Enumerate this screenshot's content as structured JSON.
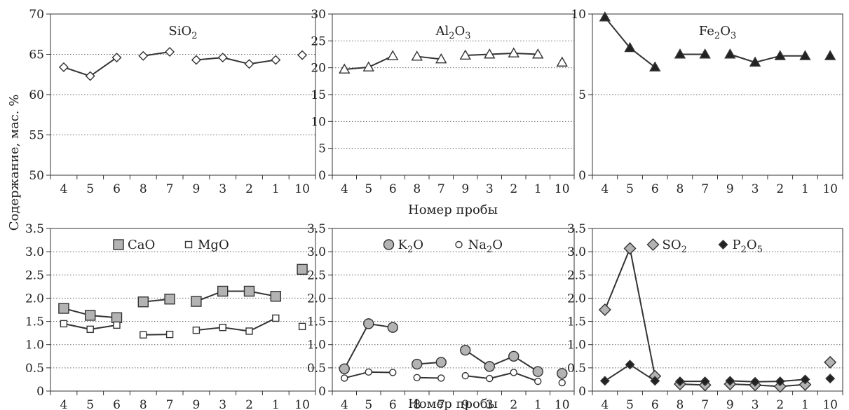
{
  "figure": {
    "ylabel": "Содержание, мас. %",
    "xlabel_top": "Номер пробы",
    "xlabel_bottom": "Номер пробы"
  },
  "chart_data": [
    {
      "type": "line",
      "categories": [
        "4",
        "5",
        "6",
        "8",
        "7",
        "9",
        "3",
        "2",
        "1",
        "10"
      ],
      "segments": [
        [
          0,
          2
        ],
        [
          3,
          4
        ],
        [
          5,
          8
        ],
        [
          9,
          9
        ]
      ],
      "title": {
        "base": "SiO",
        "sub": "2",
        "tail": ""
      },
      "ylim": [
        50,
        70
      ],
      "yticks": [
        50,
        55,
        60,
        65,
        70
      ],
      "ytick_labels": [
        "50",
        "55",
        "60",
        "65",
        "70"
      ],
      "grid": true,
      "series": [
        {
          "marker": "diamond",
          "fill": "#ffffff",
          "values": [
            63.4,
            62.3,
            64.6,
            64.8,
            65.3,
            64.3,
            64.6,
            63.8,
            64.3,
            64.9
          ]
        }
      ]
    },
    {
      "type": "line",
      "categories": [
        "4",
        "5",
        "6",
        "8",
        "7",
        "9",
        "3",
        "2",
        "1",
        "10"
      ],
      "segments": [
        [
          0,
          2
        ],
        [
          3,
          4
        ],
        [
          5,
          8
        ],
        [
          9,
          9
        ]
      ],
      "title": {
        "base": "Al",
        "sub": "2",
        "tail": "O",
        "sub2": "3"
      },
      "ylim": [
        0,
        30
      ],
      "yticks": [
        0,
        5,
        10,
        15,
        20,
        25,
        30
      ],
      "ytick_labels": [
        "0",
        "5",
        "10",
        "15",
        "20",
        "25",
        "30"
      ],
      "grid": true,
      "series": [
        {
          "marker": "triangle",
          "fill": "#ffffff",
          "values": [
            19.7,
            20.1,
            22.2,
            22.1,
            21.6,
            22.3,
            22.5,
            22.7,
            22.5,
            21.0
          ]
        }
      ]
    },
    {
      "type": "line",
      "categories": [
        "4",
        "5",
        "6",
        "8",
        "7",
        "9",
        "3",
        "2",
        "1",
        "10"
      ],
      "segments": [
        [
          0,
          2
        ],
        [
          3,
          4
        ],
        [
          5,
          8
        ],
        [
          9,
          9
        ]
      ],
      "title": {
        "base": "Fe",
        "sub": "2",
        "tail": "O",
        "sub2": "3"
      },
      "ylim": [
        0,
        10
      ],
      "yticks": [
        0,
        5,
        10
      ],
      "ytick_labels": [
        "0",
        "5",
        "10"
      ],
      "grid": true,
      "series": [
        {
          "marker": "triangle",
          "fill": "#222222",
          "values": [
            9.8,
            7.9,
            6.7,
            7.5,
            7.5,
            7.5,
            7.0,
            7.4,
            7.4,
            7.4
          ]
        }
      ]
    },
    {
      "type": "line",
      "categories": [
        "4",
        "5",
        "6",
        "8",
        "7",
        "9",
        "3",
        "2",
        "1",
        "10"
      ],
      "segments": [
        [
          0,
          2
        ],
        [
          3,
          4
        ],
        [
          5,
          8
        ],
        [
          9,
          9
        ]
      ],
      "ylim": [
        0,
        3.5
      ],
      "yticks": [
        0,
        0.5,
        1.0,
        1.5,
        2.0,
        2.5,
        3.0,
        3.5
      ],
      "ytick_labels": [
        "0",
        "0.5",
        "1.0",
        "1.5",
        "2.0",
        "2.5",
        "3.0",
        "3.5"
      ],
      "grid": true,
      "legend_position": "top-center",
      "series": [
        {
          "name": {
            "base": "CaO"
          },
          "marker": "square-large",
          "fill": "#b3b3b3",
          "values": [
            1.78,
            1.63,
            1.58,
            1.92,
            1.98,
            1.93,
            2.15,
            2.15,
            2.04,
            2.62
          ]
        },
        {
          "name": {
            "base": "MgO"
          },
          "marker": "square-small",
          "fill": "#ffffff",
          "values": [
            1.45,
            1.33,
            1.42,
            1.21,
            1.22,
            1.31,
            1.37,
            1.29,
            1.57,
            1.39
          ]
        }
      ]
    },
    {
      "type": "line",
      "categories": [
        "4",
        "5",
        "6",
        "8",
        "7",
        "9",
        "3",
        "2",
        "1",
        "10"
      ],
      "segments": [
        [
          0,
          2
        ],
        [
          3,
          4
        ],
        [
          5,
          8
        ],
        [
          9,
          9
        ]
      ],
      "ylim": [
        0,
        3.5
      ],
      "yticks": [
        0,
        0.5,
        1.0,
        1.5,
        2.0,
        2.5,
        3.0,
        3.5
      ],
      "ytick_labels": [
        "0",
        "0.5",
        "1.0",
        "1.5",
        "2.0",
        "2.5",
        "3.0",
        "3.5"
      ],
      "grid": true,
      "legend_position": "top-center",
      "series": [
        {
          "name": {
            "base": "K",
            "sub": "2",
            "tail": "O"
          },
          "marker": "circle-large",
          "fill": "#b3b3b3",
          "values": [
            0.48,
            1.45,
            1.37,
            0.58,
            0.62,
            0.88,
            0.53,
            0.75,
            0.42,
            0.38
          ]
        },
        {
          "name": {
            "base": "Na",
            "sub": "2",
            "tail": "O"
          },
          "marker": "circle-small",
          "fill": "#ffffff",
          "values": [
            0.28,
            0.41,
            0.4,
            0.29,
            0.28,
            0.33,
            0.27,
            0.4,
            0.21,
            0.18
          ]
        }
      ]
    },
    {
      "type": "line",
      "categories": [
        "4",
        "5",
        "6",
        "8",
        "7",
        "9",
        "3",
        "2",
        "1",
        "10"
      ],
      "segments": [
        [
          0,
          2
        ],
        [
          3,
          4
        ],
        [
          5,
          8
        ],
        [
          9,
          9
        ]
      ],
      "ylim": [
        0,
        3.5
      ],
      "yticks": [
        0,
        0.5,
        1.0,
        1.5,
        2.0,
        2.5,
        3.0,
        3.5
      ],
      "ytick_labels": [
        "0",
        "0.5",
        "1.0",
        "1.5",
        "2.0",
        "2.5",
        "3.0",
        "3.5"
      ],
      "grid": true,
      "legend_position": "top-center",
      "series": [
        {
          "name": {
            "base": "SO",
            "sub": "2",
            "tail": ""
          },
          "marker": "diamond-large",
          "fill": "#b3b3b3",
          "values": [
            1.75,
            3.07,
            0.32,
            0.15,
            0.13,
            0.15,
            0.13,
            0.1,
            0.14,
            0.62
          ]
        },
        {
          "name": {
            "base": "P",
            "sub": "2",
            "tail": "O",
            "sub2": "5"
          },
          "marker": "diamond-small",
          "fill": "#222222",
          "values": [
            0.22,
            0.57,
            0.22,
            0.21,
            0.21,
            0.22,
            0.2,
            0.21,
            0.25,
            0.27
          ]
        }
      ]
    }
  ]
}
